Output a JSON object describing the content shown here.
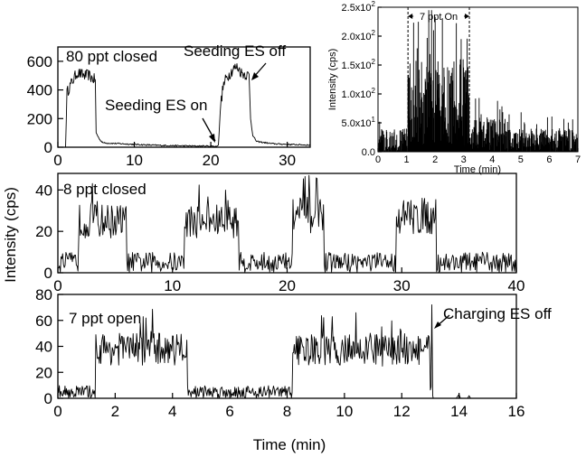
{
  "figure": {
    "ylabel": "Intensity (cps)",
    "xlabel": "Time (min)"
  },
  "chart_data": [
    {
      "id": "panel_80ppt",
      "type": "line",
      "title": "80 ppt closed",
      "xlabel": "",
      "ylabel": "Intensity (cps)",
      "xlim": [
        0,
        33
      ],
      "ylim": [
        0,
        700
      ],
      "xticks": [
        0,
        10,
        20,
        30
      ],
      "yticks": [
        0,
        200,
        400,
        600
      ],
      "series": [
        {
          "name": "80 ppt closed",
          "segments": [
            [
              0,
              0
            ],
            [
              1.0,
              0
            ],
            [
              1.2,
              380
            ],
            [
              1.5,
              420
            ],
            [
              2,
              470
            ],
            [
              2.5,
              520
            ],
            [
              3,
              510
            ],
            [
              3.5,
              500
            ],
            [
              4,
              505
            ],
            [
              4.5,
              480
            ],
            [
              4.9,
              470
            ],
            [
              5.0,
              100
            ],
            [
              5.5,
              50
            ],
            [
              6,
              30
            ],
            [
              8,
              25
            ],
            [
              10,
              20
            ],
            [
              12,
              15
            ],
            [
              14,
              12
            ],
            [
              16,
              10
            ],
            [
              18,
              8
            ],
            [
              20,
              8
            ],
            [
              20.8,
              5
            ],
            [
              21.0,
              20
            ],
            [
              21.3,
              300
            ],
            [
              21.6,
              420
            ],
            [
              22,
              480
            ],
            [
              23,
              550
            ],
            [
              23.5,
              560
            ],
            [
              24,
              520
            ],
            [
              24.5,
              510
            ],
            [
              25.0,
              500
            ],
            [
              25.2,
              200
            ],
            [
              25.5,
              80
            ],
            [
              26,
              40
            ],
            [
              28,
              25
            ],
            [
              30,
              20
            ],
            [
              33,
              15
            ]
          ]
        }
      ],
      "annotations": [
        {
          "text": "80 ppt closed",
          "x": 1,
          "y": 620
        },
        {
          "text": "Seeding ES on",
          "x": 21,
          "y": 10
        },
        {
          "text": "Seeding ES off",
          "x": 25,
          "y": 480
        }
      ]
    },
    {
      "id": "panel_8ppt",
      "type": "line",
      "title": "8 ppt closed",
      "xlabel": "",
      "ylabel": "Intensity (cps)",
      "xlim": [
        0,
        40
      ],
      "ylim": [
        0,
        48
      ],
      "xticks": [
        0,
        10,
        20,
        30,
        40
      ],
      "yticks": [
        0,
        20,
        40
      ],
      "series": [
        {
          "name": "8 ppt closed",
          "plateaus": [
            [
              1.8,
              6.0,
              25
            ],
            [
              11.0,
              15.8,
              25
            ],
            [
              20.5,
              23.2,
              28
            ],
            [
              29.5,
              33.0,
              27
            ]
          ],
          "baseline": 5
        }
      ]
    },
    {
      "id": "panel_7ppt",
      "type": "line",
      "title": "7 ppt open",
      "xlabel": "Time (min)",
      "ylabel": "",
      "xlim": [
        0,
        16
      ],
      "ylim": [
        0,
        80
      ],
      "xticks": [
        0,
        2,
        4,
        6,
        8,
        10,
        12,
        14,
        16
      ],
      "yticks": [
        0,
        20,
        40,
        60,
        80
      ],
      "series": [
        {
          "name": "7 ppt open",
          "plateaus": [
            [
              1.3,
              4.5,
              38
            ],
            [
              8.2,
              13.0,
              37
            ]
          ],
          "baseline": 5,
          "spike": [
            13.05,
            72
          ]
        }
      ],
      "annotations": [
        {
          "text": "7 ppt open",
          "x": 0.4,
          "y": 60
        },
        {
          "text": "Charging ES off",
          "x": 13.05,
          "y": 68
        }
      ]
    },
    {
      "id": "inset",
      "type": "bar",
      "title": "",
      "xlabel": "Time (min)",
      "ylabel": "Intensity (cps)",
      "xlim": [
        0,
        7
      ],
      "ylim": [
        0,
        250
      ],
      "xticks": [
        0,
        1,
        2,
        3,
        4,
        5,
        6,
        7
      ],
      "yticks": [
        0,
        50,
        100,
        150,
        200,
        250
      ],
      "ytick_labels": [
        "0.0",
        "5.0x10",
        "1.0x10",
        "1.5x10",
        "2.0x10",
        "2.5x10"
      ],
      "ytick_exponents": [
        "",
        "1",
        "2",
        "2",
        "2",
        "2"
      ],
      "highlight_window": [
        1.05,
        3.2
      ],
      "annotations": [
        {
          "text": "7 ppt On",
          "x": 1.4,
          "y": 240
        }
      ]
    }
  ]
}
